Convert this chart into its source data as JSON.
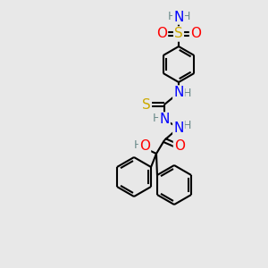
{
  "bg_color": "#e8e8e8",
  "atom_colors": {
    "C": "#000000",
    "H": "#6a8a8a",
    "N": "#0000ff",
    "O": "#ff0000",
    "S_sulfonamide": "#ccaa00",
    "S_thioamide": "#ccaa00"
  },
  "bond_color": "#000000",
  "figsize": [
    3.0,
    3.0
  ],
  "dpi": 100,
  "lw": 1.5,
  "fs": 10
}
